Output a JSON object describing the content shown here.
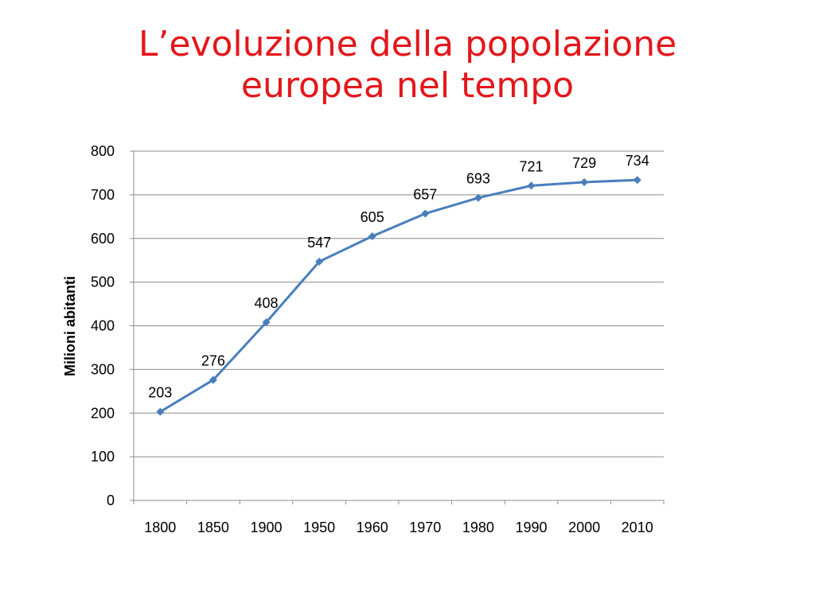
{
  "slide": {
    "title_line1": "L’evoluzione della popolazione",
    "title_line2": "europea nel tempo"
  },
  "chart_data": {
    "type": "line",
    "categories": [
      "1800",
      "1850",
      "1900",
      "1950",
      "1960",
      "1970",
      "1980",
      "1990",
      "2000",
      "2010"
    ],
    "series": [
      {
        "values": [
          203,
          276,
          408,
          547,
          605,
          657,
          693,
          721,
          729,
          734
        ]
      }
    ],
    "data_labels": [
      "203",
      "276",
      "408",
      "547",
      "605",
      "657",
      "693",
      "721",
      "729",
      "734"
    ],
    "xlabel": "",
    "ylabel": "Milioni abitanti",
    "ylim": [
      0,
      800
    ],
    "yticks": [
      0,
      100,
      200,
      300,
      400,
      500,
      600,
      700,
      800
    ],
    "grid": true,
    "legend": "none",
    "colors": {
      "line": "#4a7ebb",
      "marker": "#4a7ebb",
      "grid": "#8c8c8c",
      "title": "#e3171b"
    }
  }
}
